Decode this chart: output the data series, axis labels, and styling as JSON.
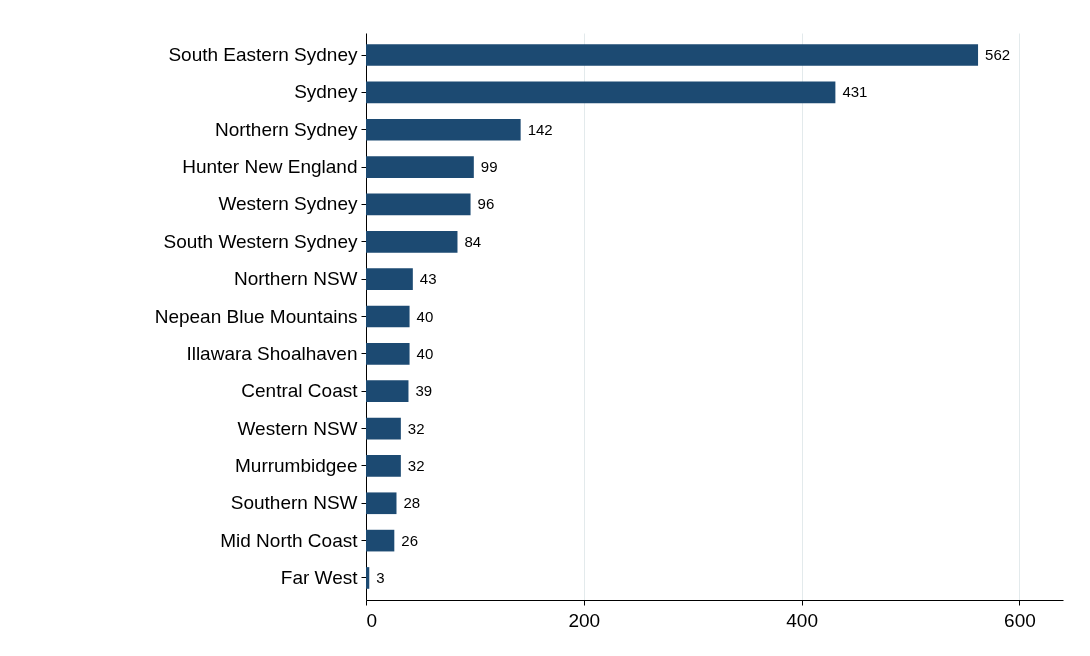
{
  "chart_data": {
    "type": "bar",
    "orientation": "horizontal",
    "categories": [
      "South Eastern Sydney",
      "Sydney",
      "Northern Sydney",
      "Hunter New England",
      "Western  Sydney",
      "South Western Sydney",
      "Northern  NSW",
      "Nepean Blue Mountains",
      "Illawara Shoalhaven",
      "Central Coast",
      "Western  NSW",
      "Murrumbidgee",
      "Southern  NSW",
      "Mid North Coast",
      "Far West"
    ],
    "values": [
      562,
      431,
      142,
      99,
      96,
      84,
      43,
      40,
      40,
      39,
      32,
      32,
      28,
      26,
      3
    ],
    "color": "#1c4a72",
    "xlim": [
      0,
      640
    ],
    "xticks": [
      0,
      200,
      400,
      600
    ],
    "grid": "x",
    "data_labels": true
  }
}
